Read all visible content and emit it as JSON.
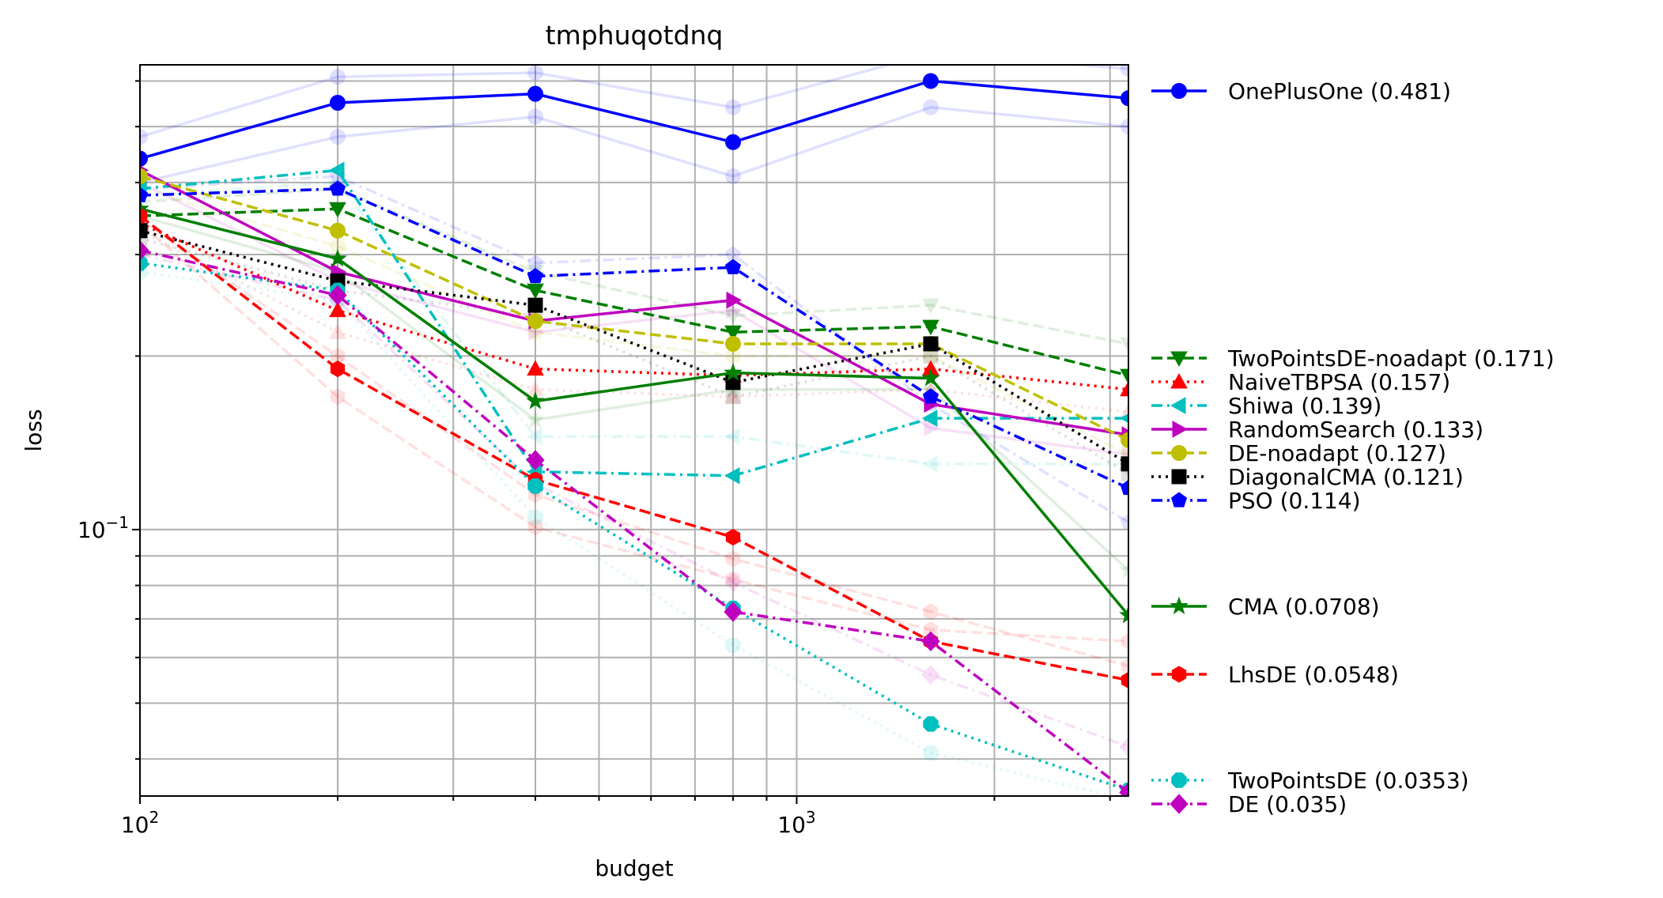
{
  "chart_data": {
    "type": "line",
    "title": "tmphuqotdnq",
    "xlabel": "budget",
    "ylabel": "loss",
    "xscale": "log",
    "yscale": "log",
    "xlim": [
      100,
      3200
    ],
    "ylim": [
      0.0345,
      0.64
    ],
    "x_tick_labels": [
      {
        "value": 100,
        "base": "10",
        "exp": "2"
      },
      {
        "value": 1000,
        "base": "10",
        "exp": "3"
      }
    ],
    "y_tick_labels": [
      {
        "value": 0.1,
        "base": "10",
        "exp": "−1"
      }
    ],
    "grid": true,
    "legend_position": "outside-right",
    "x": [
      100,
      200,
      400,
      800,
      1600,
      3200
    ],
    "series": [
      {
        "name": "OnePlusOne (0.481)",
        "color": "#0000ff",
        "dash": "solid",
        "marker": "circle",
        "values": [
          0.44,
          0.55,
          0.57,
          0.47,
          0.6,
          0.56
        ],
        "ghosts": [
          [
            0.48,
            0.61,
            0.62,
            0.54,
            0.67,
            0.63
          ],
          [
            0.4,
            0.48,
            0.52,
            0.41,
            0.54,
            0.5
          ]
        ]
      },
      {
        "name": "TwoPointsDE-noadapt (0.171)",
        "color": "#007f00",
        "dash": "dashed",
        "marker": "triangle-down",
        "values": [
          0.35,
          0.36,
          0.26,
          0.22,
          0.225,
          0.185
        ],
        "ghosts": [
          [
            0.37,
            0.39,
            0.28,
            0.235,
            0.245,
            0.21
          ]
        ]
      },
      {
        "name": "NaiveTBPSA (0.157)",
        "color": "#ff0000",
        "dash": "dotted",
        "marker": "triangle-up",
        "values": [
          0.34,
          0.24,
          0.19,
          0.185,
          0.19,
          0.175
        ],
        "ghosts": [
          [
            0.33,
            0.22,
            0.175,
            0.17,
            0.175,
            0.16
          ]
        ]
      },
      {
        "name": "Shiwa (0.139)",
        "color": "#00bfbf",
        "dash": "dashdot",
        "marker": "triangle-left",
        "values": [
          0.39,
          0.42,
          0.126,
          0.124,
          0.156,
          0.156
        ],
        "ghosts": [
          [
            0.38,
            0.4,
            0.145,
            0.145,
            0.13,
            0.13
          ]
        ]
      },
      {
        "name": "RandomSearch (0.133)",
        "color": "#bf00bf",
        "dash": "solid",
        "marker": "triangle-right",
        "values": [
          0.42,
          0.28,
          0.23,
          0.25,
          0.165,
          0.146
        ],
        "ghosts": [
          [
            0.4,
            0.27,
            0.22,
            0.24,
            0.15,
            0.135
          ]
        ]
      },
      {
        "name": "DE-noadapt (0.127)",
        "color": "#bfbf00",
        "dash": "dashed",
        "marker": "circle",
        "values": [
          0.41,
          0.33,
          0.23,
          0.21,
          0.21,
          0.143
        ],
        "ghosts": [
          [
            0.39,
            0.31,
            0.22,
            0.2,
            0.2,
            0.135
          ]
        ]
      },
      {
        "name": "DiagonalCMA (0.121)",
        "color": "#000000",
        "dash": "dotted",
        "marker": "square",
        "values": [
          0.33,
          0.27,
          0.245,
          0.18,
          0.21,
          0.13
        ],
        "ghosts": [
          [
            0.32,
            0.26,
            0.235,
            0.17,
            0.2,
            0.125
          ]
        ]
      },
      {
        "name": "PSO (0.114)",
        "color": "#0000ff",
        "dash": "dashdot",
        "marker": "pentagon",
        "values": [
          0.38,
          0.39,
          0.275,
          0.285,
          0.17,
          0.118
        ],
        "ghosts": [
          [
            0.39,
            0.41,
            0.29,
            0.3,
            0.165,
            0.103
          ]
        ]
      },
      {
        "name": "CMA (0.0708)",
        "color": "#007f00",
        "dash": "solid",
        "marker": "star",
        "values": [
          0.36,
          0.295,
          0.167,
          0.187,
          0.183,
          0.071
        ],
        "ghosts": [
          [
            0.35,
            0.28,
            0.155,
            0.175,
            0.175,
            0.085
          ]
        ]
      },
      {
        "name": "LhsDE (0.0548)",
        "color": "#ff0000",
        "dash": "dashed",
        "marker": "hexagon",
        "values": [
          0.35,
          0.19,
          0.122,
          0.097,
          0.064,
          0.0548
        ],
        "ghosts": [
          [
            0.34,
            0.17,
            0.101,
            0.082,
            0.067,
            0.064
          ],
          [
            0.345,
            0.2,
            0.115,
            0.089,
            0.072,
            0.058
          ]
        ]
      },
      {
        "name": "TwoPointsDE (0.0353)",
        "color": "#00bfbf",
        "dash": "dotted",
        "marker": "octagon",
        "values": [
          0.29,
          0.26,
          0.119,
          0.073,
          0.046,
          0.0353
        ],
        "ghosts": [
          [
            0.28,
            0.25,
            0.105,
            0.063,
            0.041,
            0.034
          ]
        ]
      },
      {
        "name": "DE (0.035)",
        "color": "#bf00bf",
        "dash": "dashdot",
        "marker": "diamond",
        "values": [
          0.305,
          0.255,
          0.132,
          0.072,
          0.064,
          0.035
        ],
        "ghosts": [
          [
            0.3,
            0.25,
            0.12,
            0.081,
            0.056,
            0.042
          ]
        ]
      }
    ]
  }
}
